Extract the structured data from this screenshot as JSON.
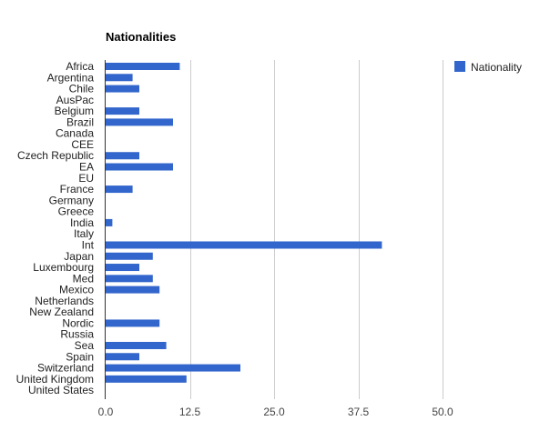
{
  "chart_data": {
    "type": "bar",
    "orientation": "horizontal",
    "title": "Nationalities",
    "categories": [
      "Africa",
      "Argentina",
      "Chile",
      "AusPac",
      "Belgium",
      "Brazil",
      "Canada",
      "CEE",
      "Czech Republic",
      "EA",
      "EU",
      "France",
      "Germany",
      "Greece",
      "India",
      "Italy",
      "Int",
      "Japan",
      "Luxembourg",
      "Med",
      "Mexico",
      "Netherlands",
      "New Zealand",
      "Nordic",
      "Russia",
      "Sea",
      "Spain",
      "Switzerland",
      "United Kingdom",
      "United States"
    ],
    "series": [
      {
        "name": "Nationality",
        "color": "#3366cc",
        "values": [
          11,
          4,
          5,
          0,
          5,
          10,
          0,
          0,
          5,
          10,
          0,
          4,
          0,
          0,
          1,
          0,
          41,
          7,
          5,
          7,
          8,
          0,
          0,
          8,
          0,
          9,
          5,
          20,
          12,
          0
        ]
      }
    ],
    "xlim": [
      0,
      50
    ],
    "xticks": [
      "0.0",
      "12.5",
      "25.0",
      "37.5",
      "50.0"
    ],
    "xtick_values": [
      0,
      12.5,
      25,
      37.5,
      50
    ],
    "grid": true,
    "legend_position": "top-right"
  }
}
